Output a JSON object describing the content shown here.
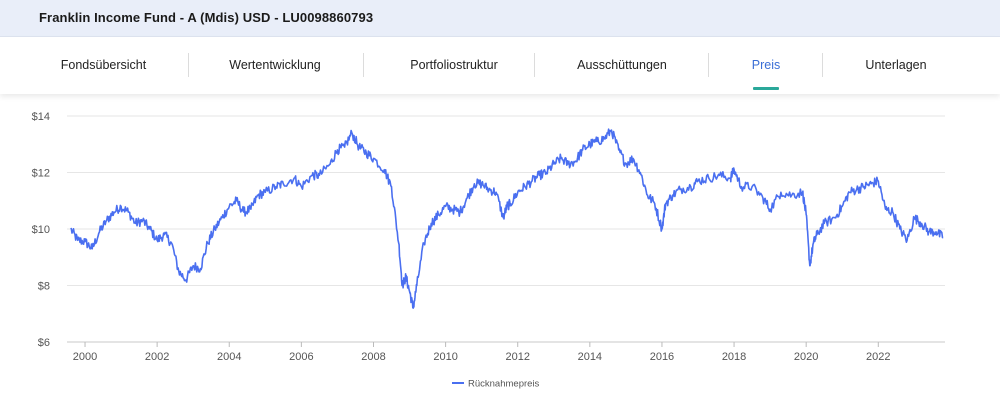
{
  "header": {
    "title": "Franklin Income Fund - A (Mdis) USD - LU0098860793"
  },
  "tabs": [
    {
      "label": "Fondsübersicht",
      "active": false
    },
    {
      "label": "Wertentwicklung",
      "active": false
    },
    {
      "label": "Portfoliostruktur",
      "active": false
    },
    {
      "label": "Ausschüttungen",
      "active": false
    },
    {
      "label": "Preis",
      "active": true
    },
    {
      "label": "Unterlagen",
      "active": false
    }
  ],
  "colors": {
    "accent": "#3b6fd6",
    "underline": "#2aa89a",
    "line": "#4a6ff0",
    "header_bg": "#e9eef9"
  },
  "chart_data": {
    "type": "line",
    "title": "",
    "xlabel": "",
    "ylabel": "",
    "ylim": [
      6,
      14
    ],
    "xlim": [
      1999.5,
      2023.85
    ],
    "y_ticks": [
      14,
      12,
      10,
      8,
      6
    ],
    "y_tick_labels": [
      "$14",
      "$12",
      "$10",
      "$8",
      "$6"
    ],
    "x_ticks": [
      2000,
      2002,
      2004,
      2006,
      2008,
      2010,
      2012,
      2014,
      2016,
      2018,
      2020,
      2022
    ],
    "x_tick_labels": [
      "2000",
      "2002",
      "2004",
      "2006",
      "2008",
      "2010",
      "2012",
      "2014",
      "2016",
      "2018",
      "2020",
      "2022"
    ],
    "grid": true,
    "legend": "bottom-center",
    "series": [
      {
        "name": "Rücknahmepreis",
        "x": [
          1999.6,
          1999.8,
          2000.0,
          2000.2,
          2000.4,
          2000.6,
          2000.8,
          2001.0,
          2001.2,
          2001.4,
          2001.6,
          2001.8,
          2002.0,
          2002.2,
          2002.4,
          2002.6,
          2002.8,
          2003.0,
          2003.2,
          2003.4,
          2003.6,
          2003.8,
          2004.0,
          2004.2,
          2004.4,
          2004.6,
          2004.8,
          2005.0,
          2005.3,
          2005.5,
          2005.8,
          2006.0,
          2006.3,
          2006.5,
          2006.8,
          2007.0,
          2007.2,
          2007.4,
          2007.6,
          2007.8,
          2008.0,
          2008.3,
          2008.5,
          2008.7,
          2008.8,
          2008.9,
          2009.0,
          2009.1,
          2009.2,
          2009.4,
          2009.6,
          2009.8,
          2010.0,
          2010.2,
          2010.4,
          2010.6,
          2010.8,
          2011.0,
          2011.2,
          2011.4,
          2011.6,
          2011.7,
          2011.8,
          2012.0,
          2012.2,
          2012.4,
          2012.6,
          2012.8,
          2013.0,
          2013.2,
          2013.4,
          2013.6,
          2013.8,
          2014.0,
          2014.2,
          2014.4,
          2014.6,
          2014.8,
          2015.0,
          2015.2,
          2015.4,
          2015.6,
          2015.8,
          2016.0,
          2016.1,
          2016.3,
          2016.5,
          2016.8,
          2017.0,
          2017.3,
          2017.6,
          2017.9,
          2018.0,
          2018.2,
          2018.5,
          2018.8,
          2019.0,
          2019.3,
          2019.6,
          2019.9,
          2020.0,
          2020.1,
          2020.2,
          2020.3,
          2020.5,
          2020.8,
          2021.0,
          2021.2,
          2021.4,
          2021.6,
          2021.8,
          2022.0,
          2022.2,
          2022.4,
          2022.6,
          2022.8,
          2023.0,
          2023.2,
          2023.4,
          2023.6,
          2023.8
        ],
        "values": [
          10.0,
          9.6,
          9.55,
          9.3,
          9.9,
          10.3,
          10.6,
          10.8,
          10.6,
          10.2,
          10.3,
          10.0,
          9.6,
          9.8,
          9.5,
          8.5,
          8.2,
          8.7,
          8.6,
          9.5,
          10.0,
          10.4,
          10.8,
          11.0,
          10.6,
          10.7,
          11.2,
          11.3,
          11.5,
          11.6,
          11.8,
          11.5,
          11.9,
          11.9,
          12.3,
          12.8,
          12.9,
          13.4,
          12.9,
          12.7,
          12.5,
          12.1,
          11.5,
          9.5,
          8.0,
          8.3,
          7.8,
          7.2,
          8.0,
          9.5,
          10.2,
          10.5,
          10.8,
          10.7,
          10.6,
          11.1,
          11.6,
          11.6,
          11.4,
          11.3,
          10.4,
          10.8,
          10.9,
          11.3,
          11.5,
          11.7,
          11.9,
          12.0,
          12.3,
          12.5,
          12.3,
          12.4,
          12.8,
          13.0,
          13.1,
          13.2,
          13.5,
          12.8,
          12.3,
          12.5,
          12.0,
          11.2,
          10.9,
          10.0,
          10.9,
          11.2,
          11.4,
          11.5,
          11.7,
          11.8,
          11.9,
          11.8,
          12.1,
          11.5,
          11.5,
          11.1,
          10.7,
          11.3,
          11.2,
          11.3,
          10.5,
          8.7,
          9.5,
          9.8,
          10.2,
          10.4,
          10.8,
          11.3,
          11.4,
          11.5,
          11.6,
          11.7,
          10.7,
          10.6,
          10.0,
          9.6,
          10.4,
          10.2,
          9.9,
          9.9,
          9.7
        ]
      }
    ]
  }
}
